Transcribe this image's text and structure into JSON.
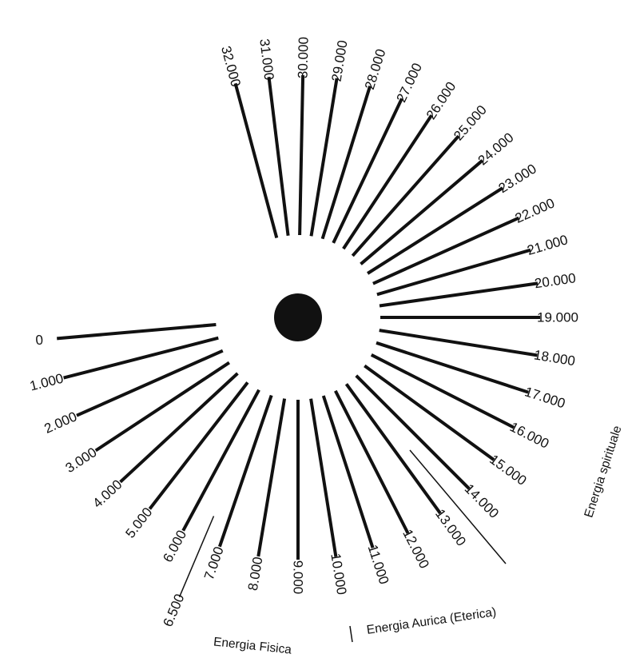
{
  "diagram": {
    "colors": {
      "ink": "#111111",
      "background": "#ffffff"
    },
    "center_dot": {
      "name": "center-dot"
    },
    "scale_labels": [
      "0",
      "1.000",
      "2.000",
      "3.000",
      "4.000",
      "5.000",
      "6.000",
      "7.000",
      "8.000",
      "9.000",
      "10.000",
      "11.000",
      "12.000",
      "13.000",
      "14.000",
      "15.000",
      "16.000",
      "17.000",
      "18.000",
      "19.000",
      "20.000",
      "21.000",
      "22.000",
      "23.000",
      "24.000",
      "25.000",
      "26.000",
      "27.000",
      "28.000",
      "29.000",
      "30.000",
      "31.000",
      "32.000"
    ],
    "marker_labels": [
      "6.500"
    ],
    "zone_labels": [
      "Energia Fisica",
      "Energia Aurica (Eterica)",
      "Energia spirituale"
    ]
  }
}
